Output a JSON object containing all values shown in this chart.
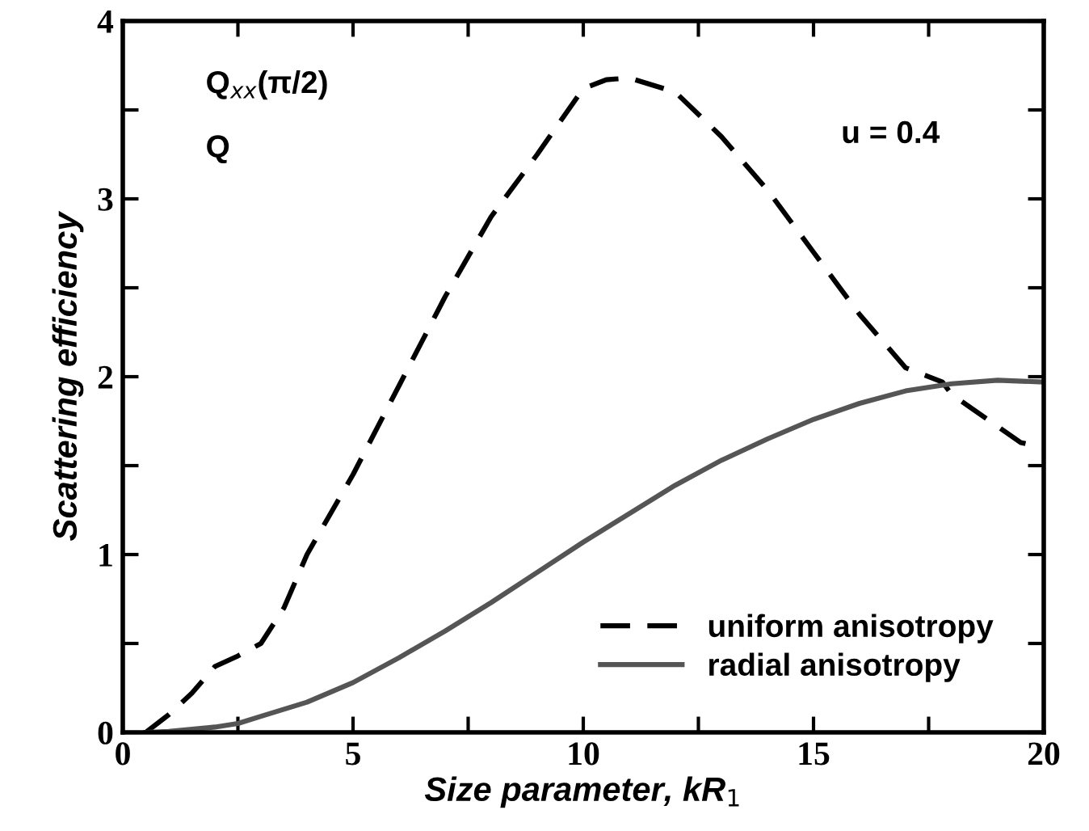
{
  "chart_data": {
    "type": "line",
    "xlabel": "Size parameter, kR$_{1}$",
    "ylabel": "Scattering efficiency",
    "annotations": [
      "Q$_{xx}$(π/2)",
      "Q",
      "u = 0.4"
    ],
    "xlim": [
      0,
      20
    ],
    "ylim": [
      0,
      4
    ],
    "xticks": [
      0,
      {
        "value": 2.5,
        "label": null
      },
      5,
      {
        "value": 7.5,
        "label": null
      },
      10,
      {
        "value": 12.5,
        "label": null
      },
      15,
      {
        "value": 17.5,
        "label": null
      },
      20
    ],
    "yticks": [
      0,
      {
        "value": 0.5,
        "label": null
      },
      1,
      {
        "value": 1.5,
        "label": null
      },
      2,
      {
        "value": 2.5,
        "label": null
      },
      3,
      {
        "value": 3.5,
        "label": null
      },
      4
    ],
    "grid": false,
    "legend": "bottom right",
    "series": [
      {
        "name": "uniform anisotropy",
        "color": "#000000",
        "line_style": "dashed",
        "x": [
          0.5,
          1,
          1.5,
          2,
          2.5,
          3,
          3.5,
          4,
          5,
          6,
          7,
          8,
          9,
          10,
          10.5,
          11,
          12,
          13,
          14,
          15,
          16,
          17,
          17.8,
          18,
          19,
          19.5,
          20
        ],
        "values": [
          0,
          0.1,
          0.22,
          0.37,
          0.43,
          0.5,
          0.7,
          1.0,
          1.45,
          1.95,
          2.45,
          2.9,
          3.25,
          3.62,
          3.67,
          3.68,
          3.6,
          3.35,
          3.05,
          2.7,
          2.35,
          2.05,
          1.97,
          1.9,
          1.72,
          1.63,
          1.6
        ]
      },
      {
        "name": "radial anisotropy",
        "color": "#555555",
        "line_style": "solid",
        "x": [
          0.5,
          1,
          2,
          2.5,
          3,
          4,
          5,
          6,
          7,
          8,
          9,
          10,
          11,
          12,
          13,
          14,
          15,
          16,
          17,
          18,
          19,
          20
        ],
        "values": [
          0,
          0.005,
          0.03,
          0.05,
          0.09,
          0.17,
          0.28,
          0.42,
          0.57,
          0.73,
          0.9,
          1.07,
          1.23,
          1.39,
          1.53,
          1.65,
          1.76,
          1.85,
          1.92,
          1.96,
          1.98,
          1.97
        ]
      }
    ]
  }
}
